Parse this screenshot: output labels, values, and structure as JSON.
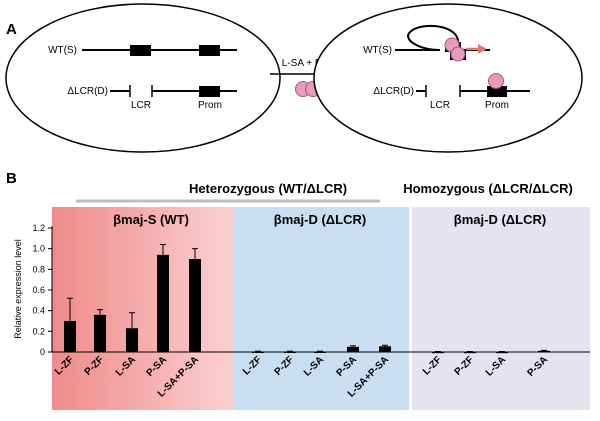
{
  "panel_a": {
    "letter": "A",
    "left_cell": {
      "wt_label": "WT(S)",
      "dlcr_label": "ΔLCR(D)",
      "lcr_label": "LCR",
      "prom_label": "Prom"
    },
    "arrow_label": "L-SA + P-SA",
    "right_cell": {
      "wt_label": "WT(S)",
      "dlcr_label": "ΔLCR(D)",
      "lcr_label": "LCR",
      "prom_label": "Prom"
    },
    "colors": {
      "pink": "#e79bbf",
      "pink_edge": "#b0527f",
      "arrow": "#e0776f"
    }
  },
  "panel_b": {
    "letter": "B",
    "heterozygous_label": "Heterozygous (WT/ΔLCR)",
    "homozygous_label": "Homozygous (ΔLCR/ΔLCR)",
    "group_titles": [
      "βmaj-S (WT)",
      "βmaj-D (ΔLCR)",
      "βmaj-D (ΔLCR)"
    ],
    "colors": {
      "red_group": "#f4a6a6",
      "blue_group": "#c9dff1",
      "lavender_group": "#e7e2ef",
      "bar": "#000000",
      "bracket": "#bdbdbd"
    }
  },
  "chart_data": {
    "type": "bar",
    "ylabel": "Relative expression level",
    "ylim": [
      0,
      1.2
    ],
    "yticks": [
      "0",
      "0.2",
      "0.4",
      "0.6",
      "0.8",
      "1.0",
      "1.2"
    ],
    "groups": [
      {
        "title": "βmaj-S (WT)",
        "categories": [
          "L-ZF",
          "P-ZF",
          "L-SA",
          "P-SA",
          "L-SA+P-SA"
        ],
        "values": [
          0.3,
          0.36,
          0.23,
          0.94,
          0.9
        ],
        "errors": [
          0.22,
          0.05,
          0.15,
          0.1,
          0.1
        ]
      },
      {
        "title": "βmaj-D (ΔLCR)",
        "categories": [
          "L-ZF",
          "P-ZF",
          "L-SA",
          "P-SA",
          "L-SA+P-SA"
        ],
        "values": [
          0.005,
          0.005,
          0.005,
          0.05,
          0.055
        ],
        "errors": [
          0.003,
          0.003,
          0.003,
          0.01,
          0.01
        ]
      },
      {
        "title": "βmaj-D (ΔLCR)",
        "categories": [
          "L-ZF",
          "P-ZF",
          "L-SA",
          "P-SA"
        ],
        "values": [
          0.003,
          0.003,
          0.003,
          0.012
        ],
        "errors": [
          0.002,
          0.002,
          0.002,
          0.004
        ]
      }
    ]
  }
}
